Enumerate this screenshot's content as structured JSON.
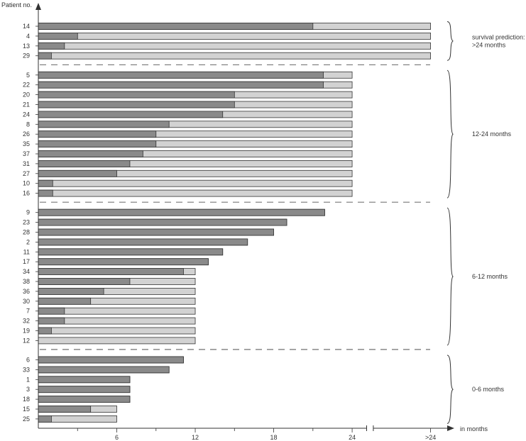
{
  "chart_data": {
    "type": "bar",
    "orientation": "horizontal-stacked",
    "ylabel": "Patient no.",
    "xlabel": "in months",
    "x_ticks": [
      {
        "value": 6,
        "label": "6"
      },
      {
        "value": 12,
        "label": "12"
      },
      {
        "value": 18,
        "label": "18"
      },
      {
        "value": 24,
        "label": "24"
      },
      {
        "value": 30,
        "label": ">24"
      }
    ],
    "xlim": [
      0,
      31
    ],
    "axis_break_between": [
      25,
      26
    ],
    "colors": {
      "dark": "#8a8a8a",
      "light": "#d2d2d2",
      "stroke": "#333333"
    },
    "series": [
      {
        "key": "dark"
      },
      {
        "key": "light"
      }
    ],
    "groups": [
      {
        "label_lines": [
          "survival prediction:",
          ">24 months"
        ],
        "rows": [
          {
            "patient": "14",
            "dark": 21.0,
            "total": 30
          },
          {
            "patient": "4",
            "dark": 3.0,
            "total": 30
          },
          {
            "patient": "13",
            "dark": 2.0,
            "total": 30
          },
          {
            "patient": "29",
            "dark": 1.0,
            "total": 30
          }
        ]
      },
      {
        "label_lines": [
          "12-24 months"
        ],
        "rows": [
          {
            "patient": "5",
            "dark": 21.8,
            "total": 24
          },
          {
            "patient": "22",
            "dark": 21.8,
            "total": 24
          },
          {
            "patient": "20",
            "dark": 15.0,
            "total": 24
          },
          {
            "patient": "21",
            "dark": 15.0,
            "total": 24
          },
          {
            "patient": "24",
            "dark": 14.1,
            "total": 24
          },
          {
            "patient": "8",
            "dark": 10.0,
            "total": 24
          },
          {
            "patient": "26",
            "dark": 9.0,
            "total": 24
          },
          {
            "patient": "35",
            "dark": 9.0,
            "total": 24
          },
          {
            "patient": "37",
            "dark": 8.0,
            "total": 24
          },
          {
            "patient": "31",
            "dark": 7.0,
            "total": 24
          },
          {
            "patient": "27",
            "dark": 6.0,
            "total": 24
          },
          {
            "patient": "10",
            "dark": 1.1,
            "total": 24
          },
          {
            "patient": "16",
            "dark": 1.1,
            "total": 24
          }
        ]
      },
      {
        "label_lines": [
          "6-12 months"
        ],
        "rows": [
          {
            "patient": "9",
            "dark": 21.9,
            "total": 21.9
          },
          {
            "patient": "23",
            "dark": 19.0,
            "total": 19.0
          },
          {
            "patient": "28",
            "dark": 18.0,
            "total": 18.0
          },
          {
            "patient": "2",
            "dark": 16.0,
            "total": 16.0
          },
          {
            "patient": "11",
            "dark": 14.1,
            "total": 14.1
          },
          {
            "patient": "17",
            "dark": 13.0,
            "total": 13.0
          },
          {
            "patient": "34",
            "dark": 11.1,
            "total": 12
          },
          {
            "patient": "38",
            "dark": 7.0,
            "total": 12
          },
          {
            "patient": "36",
            "dark": 5.0,
            "total": 12
          },
          {
            "patient": "30",
            "dark": 4.0,
            "total": 12
          },
          {
            "patient": "7",
            "dark": 2.0,
            "total": 12
          },
          {
            "patient": "32",
            "dark": 2.0,
            "total": 12
          },
          {
            "patient": "19",
            "dark": 1.0,
            "total": 12
          },
          {
            "patient": "12",
            "dark": 0.0,
            "total": 12
          }
        ]
      },
      {
        "label_lines": [
          "0-6 months"
        ],
        "rows": [
          {
            "patient": "6",
            "dark": 11.1,
            "total": 11.1
          },
          {
            "patient": "33",
            "dark": 10.0,
            "total": 10.0
          },
          {
            "patient": "1",
            "dark": 7.0,
            "total": 7.0
          },
          {
            "patient": "3",
            "dark": 7.0,
            "total": 7.0
          },
          {
            "patient": "18",
            "dark": 7.0,
            "total": 7.0
          },
          {
            "patient": "15",
            "dark": 4.0,
            "total": 6
          },
          {
            "patient": "25",
            "dark": 1.0,
            "total": 6
          }
        ]
      }
    ]
  }
}
